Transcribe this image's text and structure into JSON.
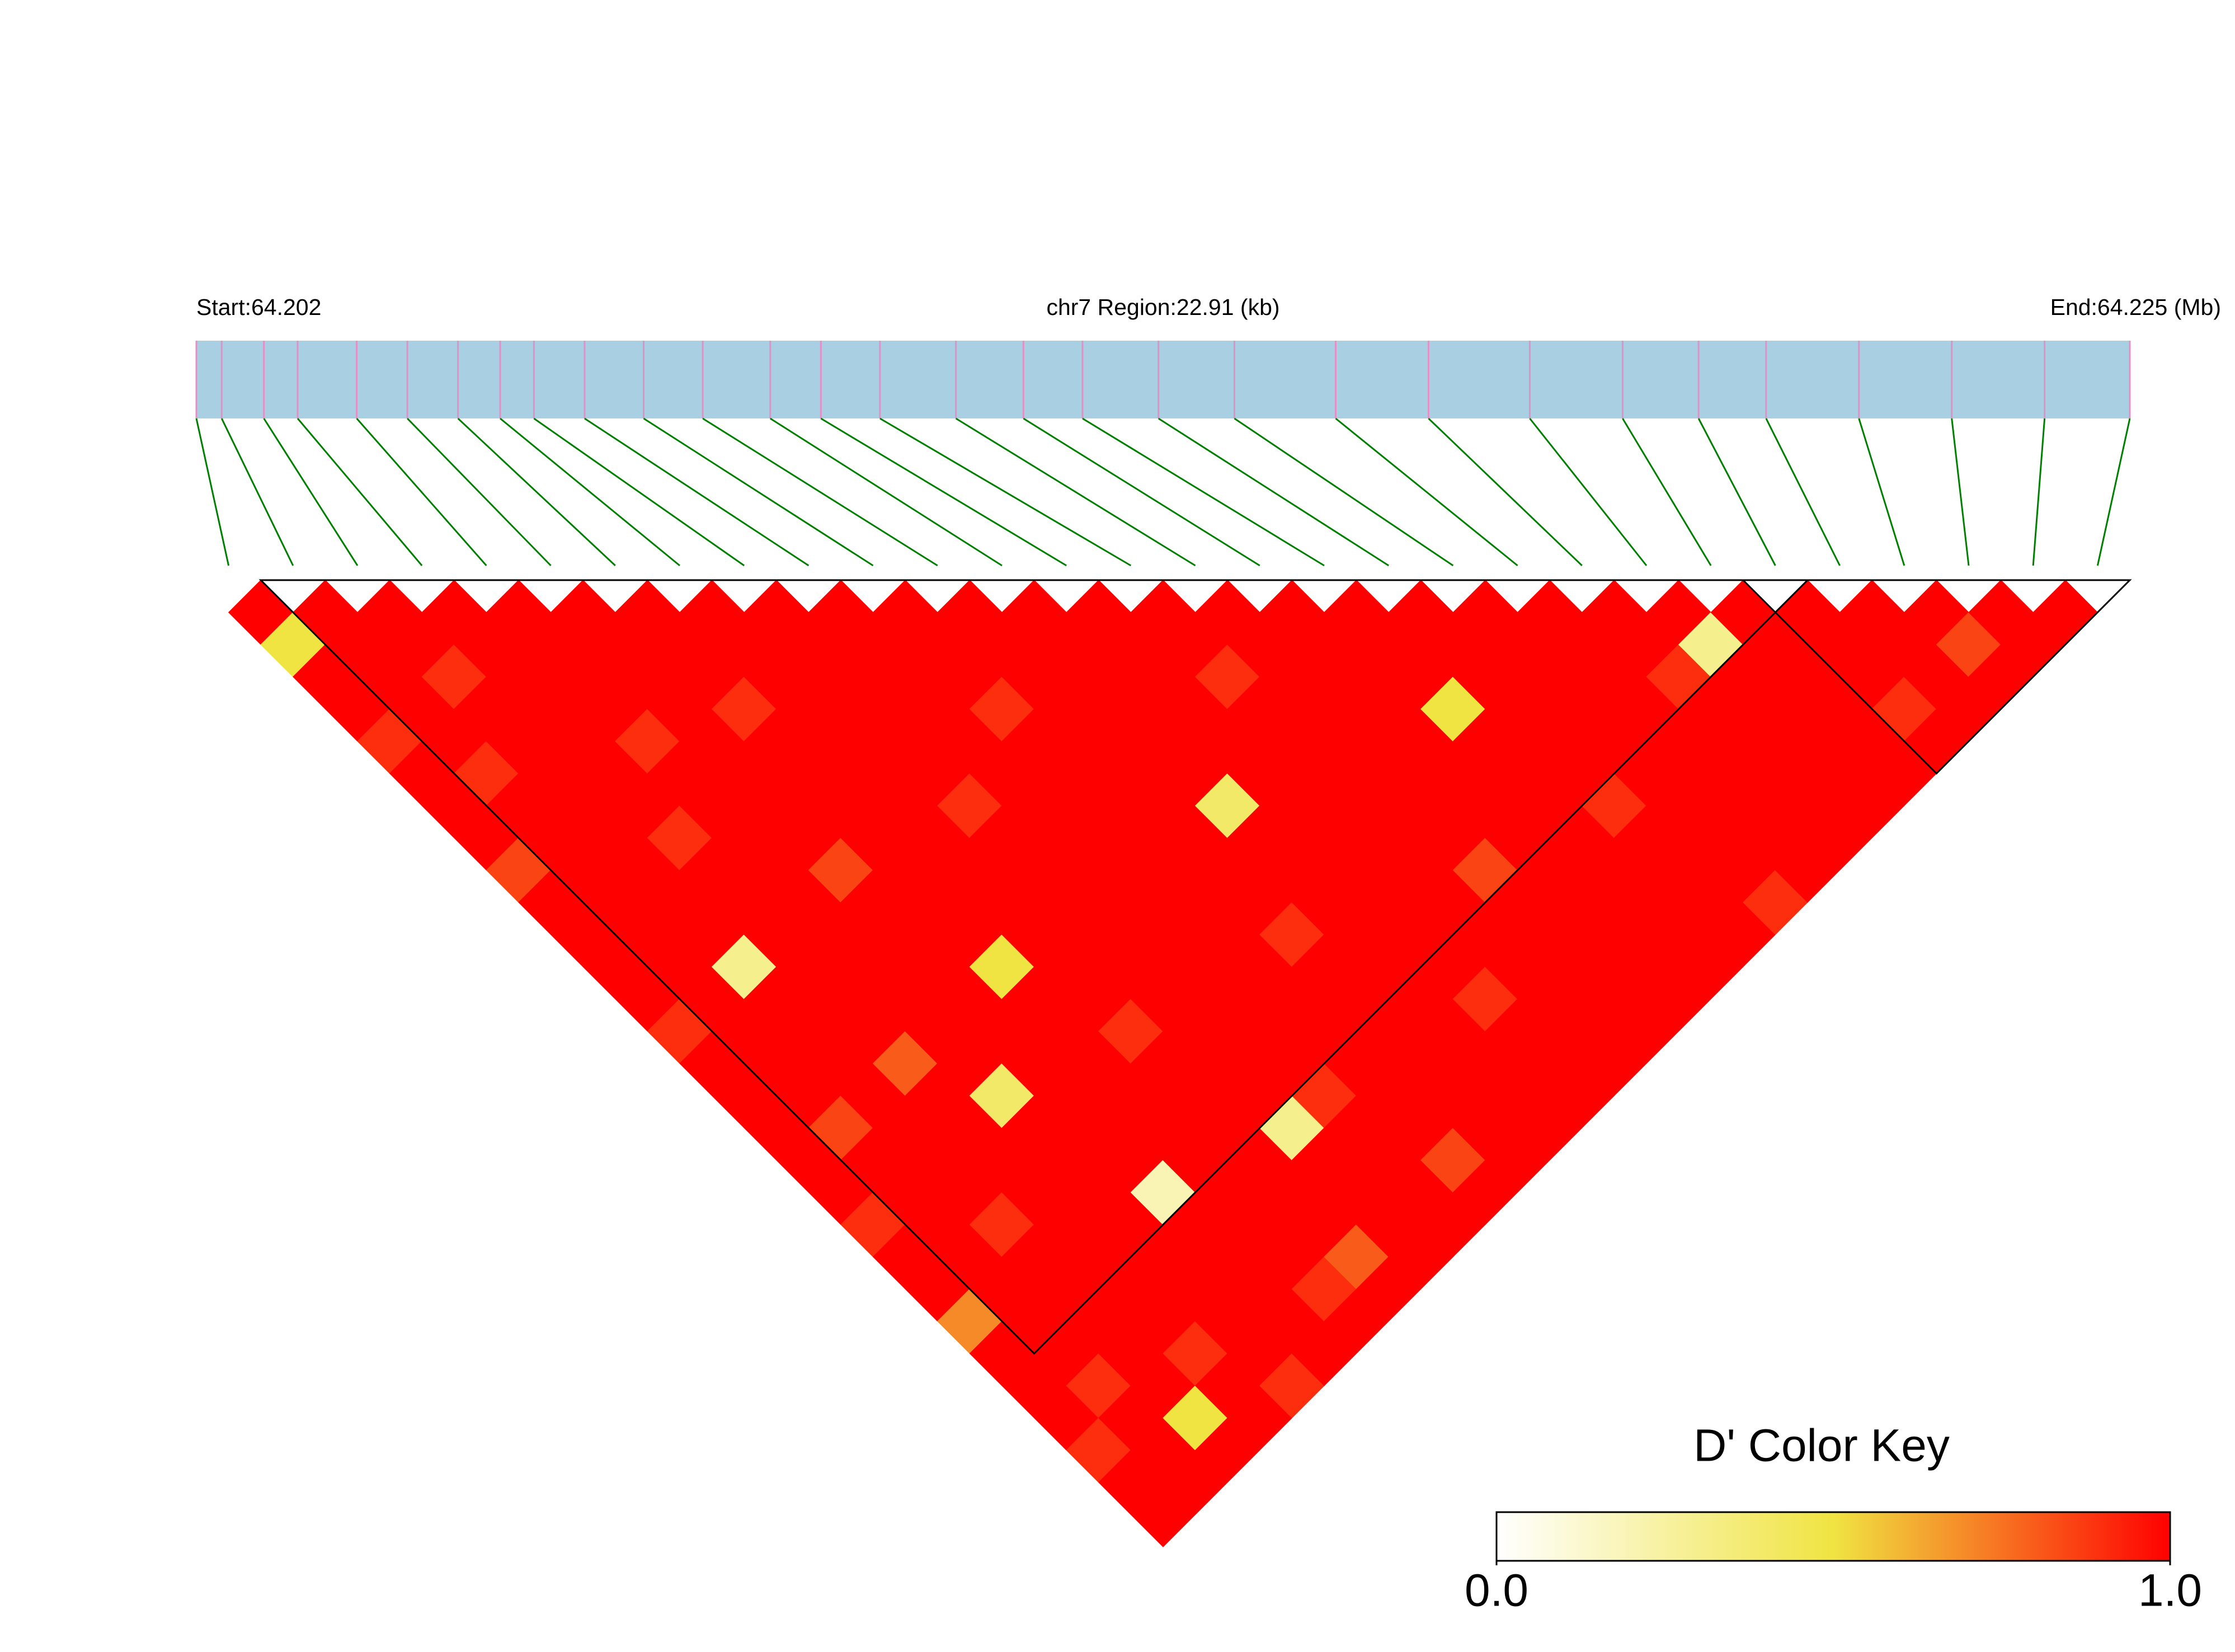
{
  "chart_data": {
    "type": "ld_heatmap",
    "start_label": "Start:64.202",
    "region_label": "chr7 Region:22.91 (kb)",
    "end_label": "End:64.225 (Mb)",
    "xlim": [
      64.202,
      64.22491
    ],
    "snp_positions": [
      64.202,
      64.2023,
      64.2028,
      64.2032,
      64.2039,
      64.2045,
      64.2051,
      64.2056,
      64.206,
      64.2066,
      64.2073,
      64.208,
      64.2088,
      64.2094,
      64.2101,
      64.211,
      64.2118,
      64.2125,
      64.2134,
      64.2143,
      64.2155,
      64.2166,
      64.2178,
      64.2189,
      64.2198,
      64.2206,
      64.2217,
      64.2228,
      64.2239,
      64.22491
    ],
    "dprime": [
      [
        1,
        0.5,
        1,
        1,
        0.9,
        1,
        1,
        1,
        0.85,
        1,
        1,
        1,
        1,
        0.9,
        1,
        1,
        1,
        1,
        1,
        0.9,
        1,
        1,
        0.7,
        1,
        1,
        1,
        0.9,
        1,
        1
      ],
      [
        1,
        1,
        1,
        1,
        1,
        0.9,
        1,
        1,
        1,
        1,
        1,
        1,
        1,
        1,
        1,
        1,
        0.85,
        1,
        1,
        1,
        1,
        1,
        1,
        1,
        0.9,
        1,
        1,
        1
      ],
      [
        1,
        1,
        0.9,
        1,
        1,
        1,
        1,
        1,
        1,
        1,
        1,
        0.3,
        1,
        1,
        1,
        1,
        1,
        1,
        1,
        0.9,
        1,
        1,
        1,
        1,
        1,
        0.5,
        1
      ],
      [
        1,
        1,
        1,
        1,
        1,
        1,
        1,
        0.9,
        1,
        1,
        1,
        1,
        1,
        1,
        0.8,
        1,
        1,
        1,
        1,
        1,
        1,
        1,
        1,
        0.9,
        1,
        1
      ],
      [
        1,
        1,
        1,
        1,
        0.9,
        1,
        1,
        1,
        1,
        1,
        1,
        1,
        1,
        1,
        1,
        0.4,
        1,
        1,
        1,
        1,
        1,
        1,
        1,
        1,
        0.9
      ],
      [
        1,
        1,
        1,
        1,
        1,
        1,
        1,
        1,
        0.85,
        1,
        1,
        1,
        1,
        1,
        1,
        1,
        1,
        1,
        0.2,
        1,
        1,
        1,
        1,
        1
      ],
      [
        1,
        1,
        1,
        0.9,
        1,
        1,
        1,
        1,
        1,
        1,
        1,
        0.5,
        1,
        1,
        1,
        1,
        1,
        1,
        1,
        1,
        1,
        0.9,
        1
      ],
      [
        1,
        1,
        1,
        1,
        1,
        1,
        1,
        1,
        1,
        1,
        1,
        1,
        1,
        0.9,
        1,
        1,
        1,
        1,
        1,
        1,
        0.8,
        1
      ],
      [
        1,
        1,
        1,
        1,
        1,
        1,
        0.9,
        1,
        1,
        1,
        1,
        1,
        1,
        1,
        1,
        1,
        0.3,
        1,
        1,
        1,
        1
      ],
      [
        1,
        1,
        1,
        1,
        1,
        1,
        1,
        1,
        1,
        1,
        1,
        1,
        1,
        1,
        1,
        0.9,
        1,
        1,
        1,
        1
      ],
      [
        1,
        1,
        1,
        0.9,
        1,
        1,
        1,
        1,
        1,
        1,
        1,
        1,
        1,
        1,
        1,
        1,
        1,
        0.85,
        1
      ],
      [
        1,
        1,
        1,
        1,
        1,
        1,
        1,
        1,
        1,
        1,
        0.9,
        1,
        1,
        1,
        1,
        1,
        1,
        1
      ],
      [
        1,
        1,
        1,
        1,
        1,
        1,
        0.4,
        1,
        1,
        1,
        1,
        1,
        1,
        1,
        1,
        1,
        1
      ],
      [
        1,
        1,
        1,
        1,
        1,
        1,
        1,
        1,
        1,
        1,
        1,
        1,
        0.9,
        1,
        1,
        1
      ],
      [
        1,
        1,
        0.9,
        1,
        1,
        1,
        1,
        1,
        1,
        1,
        1,
        1,
        1,
        1,
        1
      ],
      [
        1,
        1,
        1,
        1,
        1,
        1,
        1,
        1,
        0.85,
        1,
        1,
        1,
        1,
        1
      ],
      [
        1,
        1,
        1,
        1,
        1,
        1,
        1,
        1,
        1,
        1,
        1,
        1,
        1
      ],
      [
        1,
        1,
        1,
        0.5,
        1,
        1,
        1,
        1,
        1,
        1,
        1,
        1
      ],
      [
        1,
        1,
        1,
        1,
        1,
        1,
        0.9,
        1,
        1,
        1,
        1
      ],
      [
        1,
        1,
        1,
        1,
        1,
        1,
        1,
        1,
        1,
        0.9
      ],
      [
        1,
        1,
        1,
        1,
        1,
        1,
        1,
        1,
        1
      ],
      [
        1,
        1,
        0.9,
        1,
        1,
        1,
        1,
        1
      ],
      [
        1,
        0.3,
        1,
        1,
        1,
        1,
        1
      ],
      [
        1,
        1,
        1,
        1,
        1,
        1
      ],
      [
        1,
        1,
        1,
        0.9,
        1
      ],
      [
        1,
        1,
        1,
        1
      ],
      [
        1,
        0.85,
        1
      ],
      [
        1,
        1
      ],
      [
        1
      ]
    ],
    "blocks": [
      [
        1,
        24
      ],
      [
        24,
        29
      ]
    ],
    "colorbar_title": "D' Color Key",
    "colorbar_ticks": [
      {
        "value": 0,
        "label": "0.0"
      },
      {
        "value": 1,
        "label": "1.0"
      }
    ],
    "color_scale": [
      "#ffffff",
      "#f0e442",
      "#ff0000"
    ],
    "bar_color": "#a8cfe2",
    "snp_line_color": "#e58fc6",
    "connector_color": "#008000"
  }
}
